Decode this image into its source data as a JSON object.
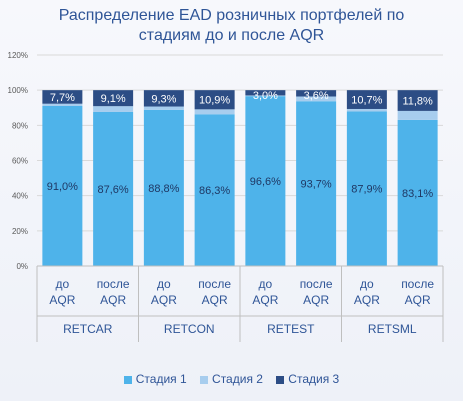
{
  "chart_data": {
    "type": "bar",
    "stacked": true,
    "title_lines": [
      "Распределение EAD розничных портфелей по",
      "стадиям до и после AQR"
    ],
    "ylim": [
      0,
      120
    ],
    "yticks": [
      0,
      20,
      40,
      60,
      80,
      100,
      120
    ],
    "ytick_labels": [
      "0%",
      "20%",
      "40%",
      "60%",
      "80%",
      "100%",
      "120%"
    ],
    "groups": [
      "RETCAR",
      "RETCON",
      "RETEST",
      "RETSML"
    ],
    "subcategories": [
      "до AQR",
      "после AQR"
    ],
    "categories": [
      "до AQR",
      "после AQR",
      "до AQR",
      "после AQR",
      "до AQR",
      "после AQR",
      "до AQR",
      "после AQR"
    ],
    "series": [
      {
        "name": "Стадия 1",
        "color": "#4eb3ea",
        "values": [
          91.0,
          87.6,
          88.8,
          86.3,
          96.6,
          93.7,
          87.9,
          83.1
        ],
        "labels": [
          "91,0%",
          "87,6%",
          "88,8%",
          "86,3%",
          "96,6%",
          "93,7%",
          "87,9%",
          "83,1%"
        ]
      },
      {
        "name": "Стадия 2",
        "color": "#a7cdee",
        "values": [
          1.3,
          3.3,
          1.9,
          2.8,
          0.4,
          2.7,
          1.4,
          5.1
        ],
        "labels": null
      },
      {
        "name": "Стадия 3",
        "color": "#2c4d85",
        "values": [
          7.7,
          9.1,
          9.3,
          10.9,
          3.0,
          3.6,
          10.7,
          11.8
        ],
        "labels": [
          "7,7%",
          "9,1%",
          "9,3%",
          "10,9%",
          "3,0%",
          "3,6%",
          "10,7%",
          "11,8%"
        ]
      }
    ],
    "grid": true,
    "legend": "bottom"
  }
}
